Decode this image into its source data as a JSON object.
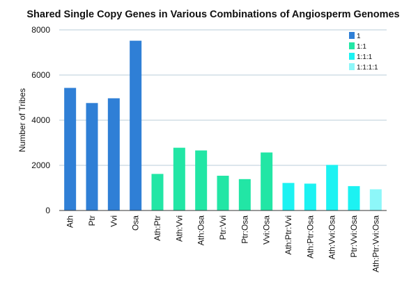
{
  "chart_data": {
    "type": "bar",
    "title": "Shared Single Copy Genes in Various Combinations of Angiosperm Genomes",
    "xlabel": "",
    "ylabel": "Number of Tribes",
    "ylim": [
      0,
      8000
    ],
    "yticks": [
      "0",
      "2000",
      "4000",
      "6000",
      "8000"
    ],
    "grid": true,
    "legend_position": "top-right",
    "categories": [
      "Ath",
      "Ptr",
      "Vvi",
      "Osa",
      "Ath:Ptr",
      "Ath:Vvi",
      "Ath:Osa",
      "Ptr:Vvi",
      "Ptr:Osa",
      "Vvi:Osa",
      "Ath:Ptr:Vvi",
      "Ath:Ptr:Osa",
      "Ath:Vvi:Osa",
      "Ptr:Vvi:Osa",
      "Ath:Ptr:Vvi:Osa"
    ],
    "values": [
      5430,
      4760,
      4970,
      7520,
      1620,
      2780,
      2660,
      1540,
      1390,
      2570,
      1220,
      1190,
      2020,
      1080,
      940
    ],
    "groups": [
      0,
      0,
      0,
      0,
      1,
      1,
      1,
      1,
      1,
      1,
      2,
      2,
      2,
      2,
      3
    ],
    "series": [
      {
        "name": "1",
        "color": "#2f7fd6"
      },
      {
        "name": "1:1",
        "color": "#22e6a5"
      },
      {
        "name": "1:1:1",
        "color": "#1cf2f2"
      },
      {
        "name": "1:1:1:1",
        "color": "#8df7f9"
      }
    ]
  }
}
